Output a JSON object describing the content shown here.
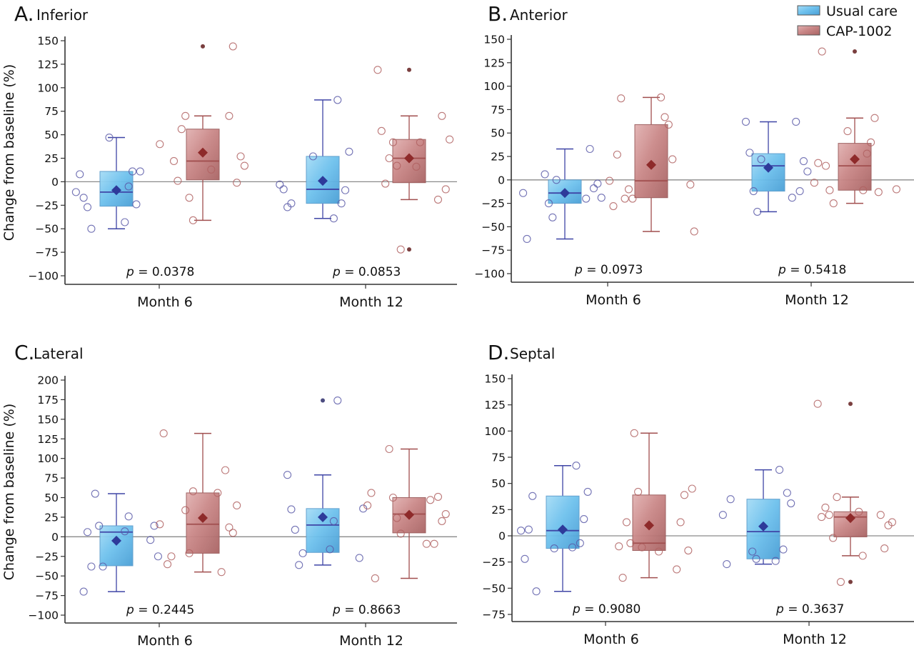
{
  "legend": {
    "items": [
      {
        "label": "Usual care",
        "color": "#6cc0ec",
        "line": "#3f45a6",
        "point": "#5b5ba8"
      },
      {
        "label": "CAP-1002",
        "color": "#c98686",
        "line": "#a14f4f",
        "point": "#b06262"
      }
    ]
  },
  "chart_data": [
    {
      "type": "box",
      "panel": "A.",
      "title": "Inferior",
      "ylabel": "Change from baseline (%)",
      "xlabel": "",
      "categories": [
        "Month 6",
        "Month 12"
      ],
      "ylim": [
        -100,
        150
      ],
      "yticks": [
        150,
        125,
        100,
        75,
        50,
        25,
        0,
        -25,
        -50,
        -75,
        -100
      ],
      "ytick_labels": [
        "150",
        "125",
        "100",
        "75",
        "50",
        "25",
        "0",
        "−25",
        "−50",
        "−75",
        "−100"
      ],
      "reference_line": 0,
      "pvalues": [
        "0.0378",
        "0.0853"
      ],
      "series": [
        {
          "name": "Usual care",
          "boxes": [
            {
              "category": "Month 6",
              "q1": -26,
              "median": -11,
              "q3": 11,
              "whisker_low": -50,
              "whisker_high": 47,
              "mean": -9,
              "outliers": [],
              "points": [
                47,
                11,
                -11,
                -24,
                8,
                11,
                -17,
                -5,
                -27,
                -43,
                -50
              ]
            },
            {
              "category": "Month 12",
              "q1": -23,
              "median": -8,
              "q3": 27,
              "whisker_low": -39,
              "whisker_high": 87,
              "mean": 1,
              "outliers": [],
              "points": [
                27,
                32,
                -3,
                -9,
                -8,
                -23,
                -27,
                87,
                -23,
                -39
              ]
            }
          ]
        },
        {
          "name": "CAP-1002",
          "boxes": [
            {
              "category": "Month 6",
              "q1": 2,
              "median": 22,
              "q3": 56,
              "whisker_low": -41,
              "whisker_high": 70,
              "mean": 31,
              "outliers": [
                144
              ],
              "points": [
                22,
                13,
                1,
                17,
                56,
                27,
                70,
                -1,
                -17,
                144,
                -41,
                70,
                40
              ]
            },
            {
              "category": "Month 12",
              "q1": -1,
              "median": 25,
              "q3": 45,
              "whisker_low": -19,
              "whisker_high": 70,
              "mean": 25,
              "outliers": [
                119,
                -72
              ],
              "points": [
                119,
                42,
                54,
                16,
                -2,
                45,
                25,
                -8,
                42,
                70,
                17,
                -19,
                -72
              ]
            }
          ]
        }
      ]
    },
    {
      "type": "box",
      "panel": "B.",
      "title": "Anterior",
      "ylabel": "",
      "xlabel": "",
      "categories": [
        "Month 6",
        "Month 12"
      ],
      "ylim": [
        -100,
        150
      ],
      "yticks": [
        150,
        125,
        100,
        75,
        50,
        25,
        0,
        -25,
        -50,
        -75,
        -100
      ],
      "ytick_labels": [
        "150",
        "125",
        "100",
        "75",
        "50",
        "25",
        "0",
        "−25",
        "−50",
        "−75",
        "−100"
      ],
      "reference_line": 0,
      "pvalues": [
        "0.0973",
        "0.5418"
      ],
      "series": [
        {
          "name": "Usual care",
          "boxes": [
            {
              "category": "Month 6",
              "q1": -25,
              "median": -14,
              "q3": 0,
              "whisker_low": -63,
              "whisker_high": 33,
              "mean": -14,
              "outliers": [],
              "points": [
                6,
                -19,
                -25,
                -4,
                -40,
                -9,
                0,
                33,
                -14,
                -20,
                -63
              ]
            },
            {
              "category": "Month 12",
              "q1": -12,
              "median": 15,
              "q3": 28,
              "whisker_low": -34,
              "whisker_high": 62,
              "mean": 13,
              "outliers": [],
              "points": [
                62,
                9,
                29,
                20,
                -12,
                -12,
                -34,
                62,
                22,
                -19
              ]
            }
          ]
        },
        {
          "name": "CAP-1002",
          "boxes": [
            {
              "category": "Month 6",
              "q1": -19,
              "median": -1,
              "q3": 59,
              "whisker_low": -55,
              "whisker_high": 88,
              "mean": 16,
              "outliers": [],
              "points": [
                -1,
                22,
                -28,
                59,
                27,
                67,
                87,
                88,
                -20,
                -55,
                -10,
                -5,
                -20
              ]
            },
            {
              "category": "Month 12",
              "q1": -11,
              "median": 15,
              "q3": 39,
              "whisker_low": -25,
              "whisker_high": 66,
              "mean": 22,
              "outliers": [
                137
              ],
              "points": [
                52,
                -13,
                -3,
                66,
                18,
                40,
                137,
                28,
                15,
                -11,
                -11,
                -10,
                -25
              ]
            }
          ]
        }
      ]
    },
    {
      "type": "box",
      "panel": "C.",
      "title": "Lateral",
      "ylabel": "Change from baseline (%)",
      "xlabel": "",
      "categories": [
        "Month 6",
        "Month 12"
      ],
      "ylim": [
        -100,
        200
      ],
      "yticks": [
        200,
        175,
        150,
        125,
        100,
        75,
        50,
        25,
        0,
        -25,
        -50,
        -75,
        -100
      ],
      "ytick_labels": [
        "200",
        "175",
        "150",
        "125",
        "100",
        "75",
        "50",
        "25",
        "0",
        "−25",
        "−50",
        "−75",
        "−100"
      ],
      "reference_line": 0,
      "pvalues": [
        "0.2445",
        "0.8663"
      ],
      "series": [
        {
          "name": "Usual care",
          "boxes": [
            {
              "category": "Month 6",
              "q1": -37,
              "median": 6,
              "q3": 14,
              "whisker_low": -70,
              "whisker_high": 55,
              "mean": -5,
              "outliers": [],
              "points": [
                -70,
                26,
                6,
                7,
                -38,
                -25,
                55,
                14,
                14,
                -4,
                -38
              ]
            },
            {
              "category": "Month 12",
              "q1": -20,
              "median": 15,
              "q3": 36,
              "whisker_low": -36,
              "whisker_high": 79,
              "mean": 25,
              "outliers": [
                174
              ],
              "points": [
                79,
                174,
                35,
                20,
                9,
                -16,
                -36,
                36,
                -21,
                -27
              ]
            }
          ]
        },
        {
          "name": "CAP-1002",
          "boxes": [
            {
              "category": "Month 6",
              "q1": -21,
              "median": 16,
              "q3": 56,
              "whisker_low": -45,
              "whisker_high": 132,
              "mean": 24,
              "outliers": [],
              "points": [
                34,
                40,
                -21,
                5,
                58,
                12,
                16,
                85,
                132,
                -45,
                -35,
                56,
                -25
              ]
            },
            {
              "category": "Month 12",
              "q1": 5,
              "median": 29,
              "q3": 50,
              "whisker_low": -53,
              "whisker_high": 112,
              "mean": 28,
              "outliers": [],
              "points": [
                112,
                29,
                50,
                20,
                24,
                51,
                4,
                -9,
                40,
                47,
                56,
                -9,
                -53
              ]
            }
          ]
        }
      ]
    },
    {
      "type": "box",
      "panel": "D.",
      "title": "Septal",
      "ylabel": "",
      "xlabel": "",
      "categories": [
        "Month 6",
        "Month 12"
      ],
      "ylim": [
        -75,
        150
      ],
      "yticks": [
        150,
        125,
        100,
        75,
        50,
        25,
        0,
        -25,
        -50,
        -75
      ],
      "ytick_labels": [
        "150",
        "125",
        "100",
        "75",
        "50",
        "25",
        "0",
        "−25",
        "−50",
        "−75"
      ],
      "reference_line": 0,
      "pvalues": [
        "0.9080",
        "0.3637"
      ],
      "series": [
        {
          "name": "Usual care",
          "boxes": [
            {
              "category": "Month 6",
              "q1": -12,
              "median": 5,
              "q3": 38,
              "whisker_low": -53,
              "whisker_high": 67,
              "mean": 6,
              "outliers": [],
              "points": [
                -12,
                42,
                5,
                16,
                -22,
                -7,
                6,
                67,
                38,
                -11,
                -53
              ]
            },
            {
              "category": "Month 12",
              "q1": -22,
              "median": 4,
              "q3": 35,
              "whisker_low": -27,
              "whisker_high": 63,
              "mean": 9,
              "outliers": [],
              "points": [
                -15,
                31,
                -22,
                41,
                20,
                -13,
                -27,
                63,
                35,
                -24
              ]
            }
          ]
        },
        {
          "name": "CAP-1002",
          "boxes": [
            {
              "category": "Month 6",
              "q1": -14,
              "median": -7,
              "q3": 39,
              "whisker_low": -40,
              "whisker_high": 98,
              "mean": 10,
              "outliers": [],
              "points": [
                -10,
                -15,
                -40,
                45,
                13,
                -14,
                -7,
                39,
                98,
                13,
                42,
                -32,
                -11
              ]
            },
            {
              "category": "Month 12",
              "q1": -1,
              "median": 18,
              "q3": 23,
              "whisker_low": -19,
              "whisker_high": 37,
              "mean": 17,
              "outliers": [
                126,
                -44
              ],
              "points": [
                126,
                -19,
                18,
                23,
                27,
                13,
                20,
                10,
                -2,
                -12,
                37,
                20,
                -44
              ]
            }
          ]
        }
      ]
    }
  ]
}
